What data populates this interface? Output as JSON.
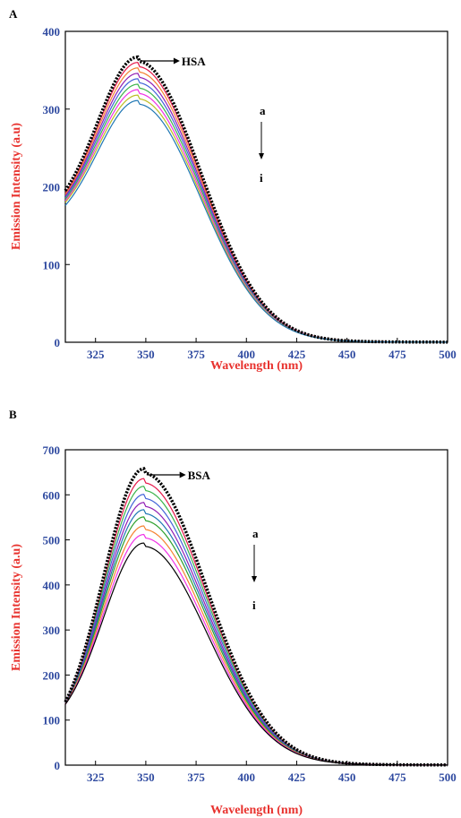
{
  "chart_data": [
    {
      "panel_label": "A",
      "type": "line",
      "xlabel": "Wavelength (nm)",
      "ylabel": "Emission Intensity (a.u)",
      "xlim": [
        310,
        500
      ],
      "ylim": [
        0,
        400
      ],
      "xticks": [
        "325",
        "350",
        "375",
        "400",
        "425",
        "450",
        "475",
        "500"
      ],
      "yticks": [
        "0",
        "100",
        "200",
        "300",
        "400"
      ],
      "annotations": {
        "label": "HSA",
        "top": "a",
        "bottom": "i"
      },
      "peak_x": 346,
      "series": [
        {
          "color": "#000000",
          "style": "dotted",
          "start": 195,
          "peak": 367
        },
        {
          "color": "#e6194b",
          "style": "solid",
          "start": 192,
          "peak": 360
        },
        {
          "color": "#f58231",
          "style": "solid",
          "start": 190,
          "peak": 353
        },
        {
          "color": "#911eb4",
          "style": "solid",
          "start": 188,
          "peak": 346
        },
        {
          "color": "#4363d8",
          "style": "solid",
          "start": 186,
          "peak": 339
        },
        {
          "color": "#3cb44b",
          "style": "solid",
          "start": 184,
          "peak": 332
        },
        {
          "color": "#f032e6",
          "style": "solid",
          "start": 182,
          "peak": 325
        },
        {
          "color": "#bcbd22",
          "style": "solid",
          "start": 180,
          "peak": 318
        },
        {
          "color": "#1f77b4",
          "style": "solid",
          "start": 176,
          "peak": 311
        }
      ]
    },
    {
      "panel_label": "B",
      "type": "line",
      "xlabel": "Wavelength (nm)",
      "ylabel": "Emission Intensity (a.u)",
      "xlim": [
        310,
        500
      ],
      "ylim": [
        0,
        700
      ],
      "xticks": [
        "325",
        "350",
        "375",
        "400",
        "425",
        "450",
        "475",
        "500"
      ],
      "yticks": [
        "0",
        "100",
        "200",
        "300",
        "400",
        "500",
        "600",
        "700"
      ],
      "annotations": {
        "label": "BSA",
        "top": "a",
        "bottom": "i"
      },
      "peak_x": 349,
      "series": [
        {
          "color": "#000000",
          "style": "dotted",
          "start": 140,
          "peak": 658
        },
        {
          "color": "#e6194b",
          "style": "solid",
          "start": 139,
          "peak": 636
        },
        {
          "color": "#3cb44b",
          "style": "solid",
          "start": 138,
          "peak": 619
        },
        {
          "color": "#4363d8",
          "style": "solid",
          "start": 138,
          "peak": 601
        },
        {
          "color": "#911eb4",
          "style": "solid",
          "start": 137,
          "peak": 583
        },
        {
          "color": "#1f77b4",
          "style": "solid",
          "start": 137,
          "peak": 567
        },
        {
          "color": "#2ca02c",
          "style": "solid",
          "start": 136,
          "peak": 551
        },
        {
          "color": "#f58231",
          "style": "solid",
          "start": 136,
          "peak": 531
        },
        {
          "color": "#f032e6",
          "style": "solid",
          "start": 135,
          "peak": 512
        },
        {
          "color": "#000000",
          "style": "solid",
          "start": 135,
          "peak": 493
        }
      ]
    }
  ]
}
